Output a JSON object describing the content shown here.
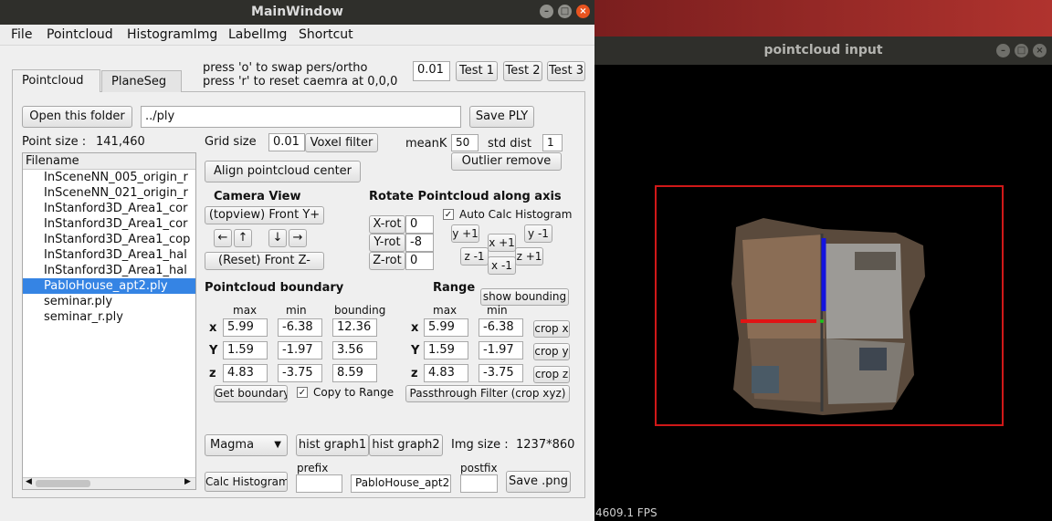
{
  "main_window": {
    "title": "MainWindow",
    "menu": [
      "File",
      "Pointcloud",
      "HistogramImg",
      "LabelImg",
      "Shortcut"
    ],
    "tabs": [
      "Pointcloud",
      "PlaneSeg"
    ],
    "hint_line1": "press 'o' to swap pers/ortho",
    "hint_line2": "press 'r' to reset caemra at 0,0,0",
    "step_value": "0.01",
    "test_buttons": [
      "Test 1",
      "Test 2",
      "Test 3"
    ],
    "open_folder_label": "Open this folder",
    "folder_path": "../ply",
    "save_ply_label": "Save PLY",
    "point_size_label": "Point size :",
    "point_size_value": "141,460",
    "filename_header": "Filename",
    "files": [
      "InSceneNN_005_origin_r",
      "InSceneNN_021_origin_r",
      "InStanford3D_Area1_cor",
      "InStanford3D_Area1_cor",
      "InStanford3D_Area1_cop",
      "InStanford3D_Area1_hal",
      "InStanford3D_Area1_hal",
      "PabloHouse_apt2.ply",
      "seminar.ply",
      "seminar_r.ply"
    ],
    "grid_size_label": "Grid size",
    "grid_size_value": "0.01",
    "voxel_filter_label": "Voxel filter",
    "meank_label": "meanK",
    "meank_value": "50",
    "std_dist_label": "std dist",
    "std_dist_value": "1",
    "outlier_remove_label": "Outlier remove",
    "align_center_label": "Align pointcloud center",
    "camera_view_label": "Camera View",
    "topview_label": "(topview) Front Y+",
    "arrow_left": "←",
    "arrow_up": "↑",
    "arrow_down": "↓",
    "arrow_right": "→",
    "reset_front_label": "(Reset) Front  Z-",
    "rotate_label": "Rotate Pointcloud along axis",
    "xrot_label": "X-rot",
    "xrot_value": "0",
    "yrot_label": "Y-rot",
    "yrot_value": "-8",
    "zrot_label": "Z-rot",
    "zrot_value": "0",
    "auto_calc_label": "Auto Calc Histogram",
    "auto_calc_checked": "✓",
    "y_plus": "y +1",
    "y_minus": "y -1",
    "x_plus": "x +1",
    "x_minus": "x -1",
    "z_plus": "z +1",
    "z_minus": "z -1",
    "boundary_label": "Pointcloud boundary",
    "col_max": "max",
    "col_min": "min",
    "col_bounding": "bounding",
    "row_x": "x",
    "row_y": "Y",
    "row_z": "z",
    "bx_max": "5.99",
    "bx_min": "-6.38",
    "bx_bound": "12.36",
    "by_max": "1.59",
    "by_min": "-1.97",
    "by_bound": "3.56",
    "bz_max": "4.83",
    "bz_min": "-3.75",
    "bz_bound": "8.59",
    "get_boundary_label": "Get boundary",
    "copy_to_range_label": "Copy to Range",
    "copy_checked": "✓",
    "range_label": "Range",
    "show_bounding_label": "show bounding",
    "rx_max": "5.99",
    "rx_min": "-6.38",
    "ry_max": "1.59",
    "ry_min": "-1.97",
    "rz_max": "4.83",
    "rz_min": "-3.75",
    "crop_x": "crop x",
    "crop_y": "crop y",
    "crop_z": "crop z",
    "passthrough_label": "Passthrough Filter (crop xyz)",
    "colormap_value": "Magma",
    "hist_graph1": "hist graph1",
    "hist_graph2": "hist graph2",
    "img_size_label": "Img size :",
    "img_size_value": "1237*860",
    "calc_hist_label": "Calc Histogram",
    "prefix_label": "prefix",
    "prefix_value": "",
    "name_value": "PabloHouse_apt2",
    "postfix_label": "postfix",
    "postfix_value": "",
    "save_png_label": "Save .png"
  },
  "viewer": {
    "title": "pointcloud input",
    "fps": "4609.1 FPS"
  }
}
